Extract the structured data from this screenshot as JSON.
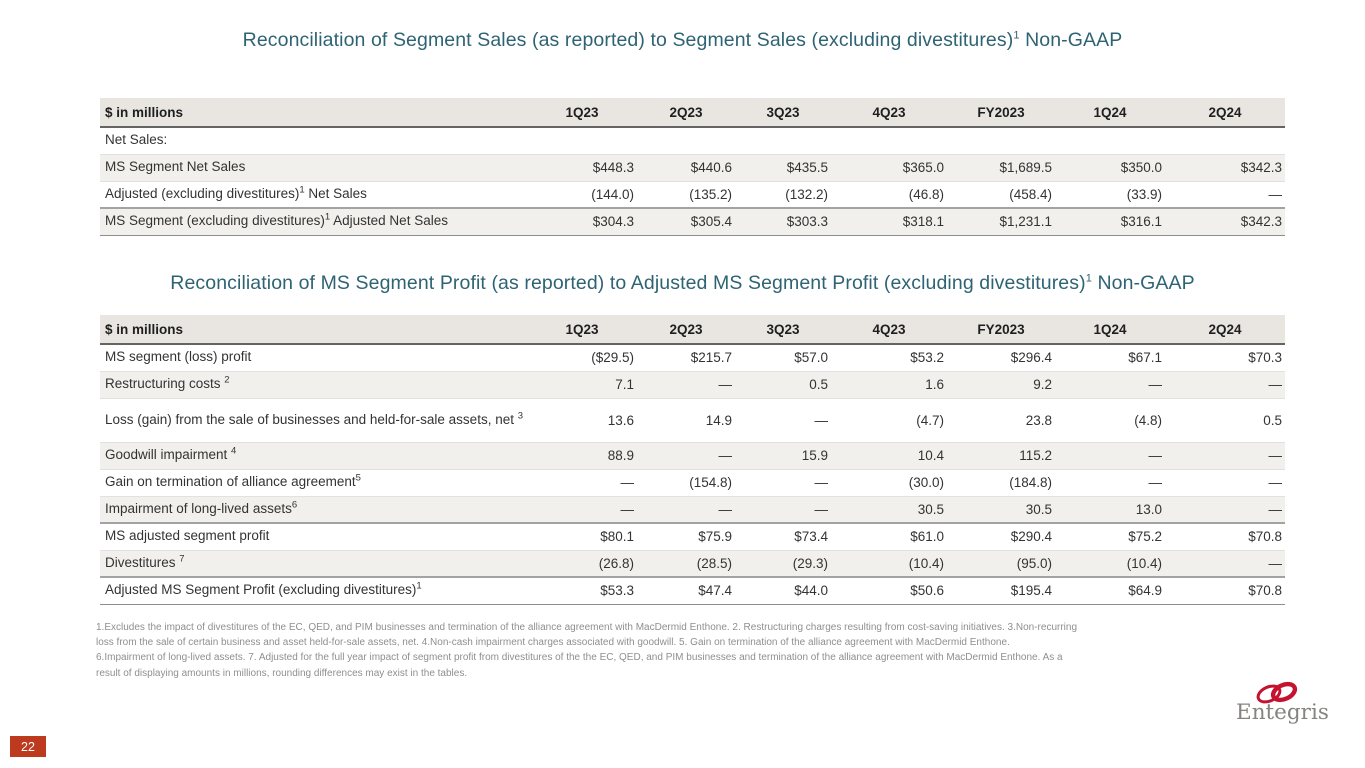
{
  "page": {
    "number": "22"
  },
  "brand": {
    "name": "Entegris"
  },
  "colors": {
    "accent": "#2E6374",
    "badge": "#BE3A1E",
    "header_bg": "#E9E6E2",
    "stripe": "#F2F0ED",
    "logo_red": "#C4122F",
    "logo_gray": "#85847E"
  },
  "tables": [
    {
      "title": {
        "pre": "Reconciliation of Segment Sales (as reported) to Segment Sales (excluding divestitures)",
        "sup": "1",
        "post": " Non-GAAP"
      },
      "columns": [
        "$ in millions",
        "1Q23",
        "2Q23",
        "3Q23",
        "4Q23",
        "FY2023",
        "1Q24",
        "2Q24"
      ],
      "rows": [
        {
          "label": {
            "pre": "Net Sales:"
          },
          "values": [
            "",
            "",
            "",
            "",
            "",
            "",
            ""
          ],
          "shade": false
        },
        {
          "label": {
            "pre": "MS Segment Net Sales"
          },
          "values": [
            "$448.3",
            "$440.6",
            "$435.5",
            "$365.0",
            "$1,689.5",
            "$350.0",
            "$342.3"
          ],
          "shade": true
        },
        {
          "label": {
            "pre": "Adjusted (excluding divestitures)",
            "sup": "1",
            "post": " Net Sales"
          },
          "values": [
            "(144.0)",
            "(135.2)",
            "(132.2)",
            "(46.8)",
            "(458.4)",
            "(33.9)",
            "—"
          ],
          "shade": false
        },
        {
          "label": {
            "pre": "MS Segment (excluding divestitures)",
            "sup": "1",
            "post": " Adjusted Net Sales"
          },
          "values": [
            "$304.3",
            "$305.4",
            "$303.3",
            "$318.1",
            "$1,231.1",
            "$316.1",
            "$342.3"
          ],
          "shade": true,
          "rule_above": true
        }
      ]
    },
    {
      "title": {
        "pre": "Reconciliation of MS Segment Profit (as reported) to Adjusted MS Segment Profit (excluding divestitures)",
        "sup": "1",
        "post": " Non-GAAP"
      },
      "columns": [
        "$ in millions",
        "1Q23",
        "2Q23",
        "3Q23",
        "4Q23",
        "FY2023",
        "1Q24",
        "2Q24"
      ],
      "rows": [
        {
          "label": {
            "pre": "MS segment (loss) profit"
          },
          "values": [
            "($29.5)",
            "$215.7",
            "$57.0",
            "$53.2",
            "$296.4",
            "$67.1",
            "$70.3"
          ],
          "shade": false
        },
        {
          "label": {
            "pre": "Restructuring costs ",
            "sup": "2"
          },
          "values": [
            "7.1",
            "—",
            "0.5",
            "1.6",
            "9.2",
            "—",
            "—"
          ],
          "shade": true
        },
        {
          "label": {
            "pre": "Loss (gain) from the sale of businesses and held-for-sale assets, net ",
            "sup": "3"
          },
          "values": [
            "13.6",
            "14.9",
            "—",
            "(4.7)",
            "23.8",
            "(4.8)",
            "0.5"
          ],
          "shade": false,
          "tall": true
        },
        {
          "label": {
            "pre": "Goodwill impairment ",
            "sup": "4"
          },
          "values": [
            "88.9",
            "—",
            "15.9",
            "10.4",
            "115.2",
            "—",
            "—"
          ],
          "shade": true
        },
        {
          "label": {
            "pre": "Gain on termination of alliance agreement",
            "sup": "5"
          },
          "values": [
            "—",
            "(154.8)",
            "—",
            "(30.0)",
            "(184.8)",
            "—",
            "—"
          ],
          "shade": false
        },
        {
          "label": {
            "pre": "Impairment of long-lived assets",
            "sup": "6"
          },
          "values": [
            "—",
            "—",
            "—",
            "30.5",
            "30.5",
            "13.0",
            "—"
          ],
          "shade": true
        },
        {
          "label": {
            "pre": "MS adjusted segment profit"
          },
          "values": [
            "$80.1",
            "$75.9",
            "$73.4",
            "$61.0",
            "$290.4",
            "$75.2",
            "$70.8"
          ],
          "shade": false,
          "rule_above": true
        },
        {
          "label": {
            "pre": "Divestitures ",
            "sup": "7"
          },
          "values": [
            "(26.8)",
            "(28.5)",
            "(29.3)",
            "(10.4)",
            "(95.0)",
            "(10.4)",
            "—"
          ],
          "shade": true
        },
        {
          "label": {
            "pre": "Adjusted MS Segment Profit (excluding divestitures)",
            "sup": "1"
          },
          "values": [
            "$53.3",
            "$47.4",
            "$44.0",
            "$50.6",
            "$195.4",
            "$64.9",
            "$70.8"
          ],
          "shade": false,
          "rule_above": true
        }
      ]
    }
  ],
  "footnotes": {
    "lines": [
      "1.Excludes the impact of divestitures of the EC, QED, and PIM businesses and termination of the alliance agreement with MacDermid Enthone.  2. Restructuring charges resulting from cost-saving initiatives.  3.Non-recurring",
      "loss from the sale of certain business and asset held-for-sale assets, net.  4.Non-cash impairment charges associated with goodwill.  5. Gain on termination of the alliance agreement with MacDermid Enthone.",
      "6.Impairment of long-lived assets. 7. Adjusted for the full year impact of segment profit from divestitures of the the EC, QED, and PIM businesses and termination of the alliance agreement with MacDermid Enthone.  As a",
      "result of displaying amounts in millions, rounding differences may exist in the tables."
    ]
  }
}
